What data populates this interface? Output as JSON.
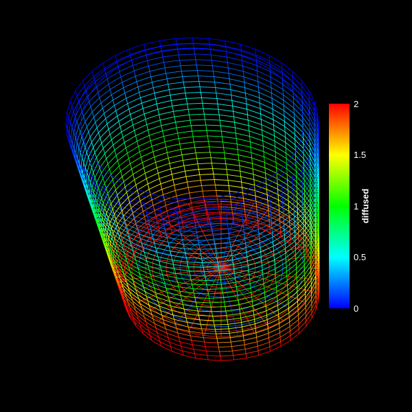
{
  "colorbar": {
    "title": "diffused",
    "ticks": [
      "2",
      "1.5",
      "1",
      "0.5",
      "0"
    ],
    "range": [
      0,
      2
    ],
    "colormap": [
      "#0000ff",
      "#00ffff",
      "#00ff00",
      "#ffff00",
      "#ff0000"
    ]
  },
  "scene": {
    "background": "#000000",
    "object": "wireframe-cylinder-mesh",
    "scalar_field": "diffused"
  }
}
